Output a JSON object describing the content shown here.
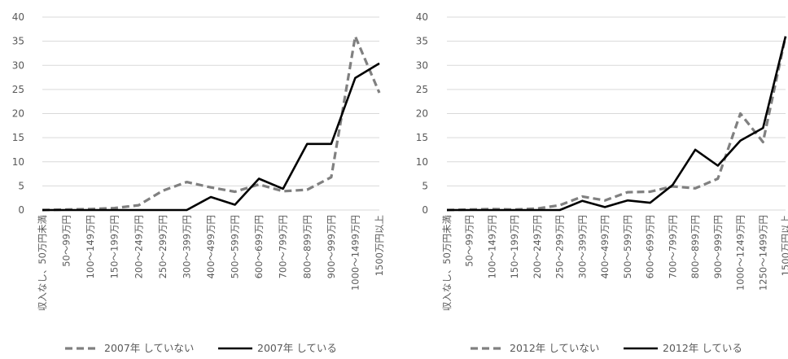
{
  "chart_data": [
    {
      "type": "line",
      "title": "",
      "xlabel": "",
      "ylabel": "",
      "ylim": [
        0,
        40
      ],
      "yticks": [
        0,
        5,
        10,
        15,
        20,
        25,
        30,
        35,
        40
      ],
      "grid": true,
      "legend": "bottom",
      "categories": [
        "収入なし、50万円未満",
        "50～99万円",
        "100～149万円",
        "150～199万円",
        "200～249万円",
        "250～299万円",
        "300～399万円",
        "400～499万円",
        "500～599万円",
        "600～699万円",
        "700～799万円",
        "800～899万円",
        "900～999万円",
        "1000～1499万円",
        "1500万円以上"
      ],
      "series": [
        {
          "name": "2007年 していない",
          "style": "dashed",
          "color": "#808080",
          "values": [
            0,
            0.1,
            0.2,
            0.4,
            1.0,
            4.0,
            5.8,
            4.7,
            3.8,
            5.3,
            3.9,
            4.2,
            6.8,
            36.0,
            24.3
          ]
        },
        {
          "name": "2007年 している",
          "style": "solid",
          "color": "#000000",
          "values": [
            0,
            0,
            0,
            0,
            0,
            0,
            0,
            2.7,
            1.1,
            6.5,
            4.4,
            13.7,
            13.7,
            27.4,
            30.4
          ]
        }
      ]
    },
    {
      "type": "line",
      "title": "",
      "xlabel": "",
      "ylabel": "",
      "ylim": [
        0,
        40
      ],
      "yticks": [
        0,
        5,
        10,
        15,
        20,
        25,
        30,
        35,
        40
      ],
      "grid": true,
      "legend": "bottom",
      "categories": [
        "収入なし、50万円未満",
        "50～99万円",
        "100～149万円",
        "150～199万円",
        "200～249万円",
        "250～299万円",
        "300～399万円",
        "400～499万円",
        "500～599万円",
        "600～699万円",
        "700～799万円",
        "800～899万円",
        "900～999万円",
        "1000～1249万円",
        "1250～1499万円",
        "1500万円以上"
      ],
      "series": [
        {
          "name": "2012年 していない",
          "style": "dashed",
          "color": "#808080",
          "values": [
            0,
            0.1,
            0.2,
            0.1,
            0.3,
            1.0,
            2.8,
            2.0,
            3.7,
            3.8,
            4.9,
            4.5,
            6.5,
            20.0,
            14.1,
            36.0
          ]
        },
        {
          "name": "2012年 している",
          "style": "solid",
          "color": "#000000",
          "values": [
            0,
            0,
            0,
            0,
            0,
            0,
            1.9,
            0.6,
            2.0,
            1.5,
            5.2,
            12.5,
            9.2,
            14.4,
            17.0,
            36.0
          ]
        }
      ]
    }
  ]
}
